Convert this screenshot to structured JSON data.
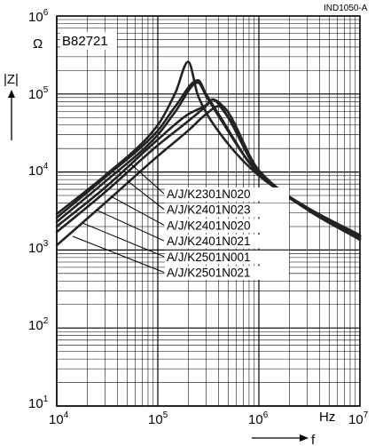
{
  "header": {
    "doc_id": "IND1050-A",
    "part_series": "B82721"
  },
  "axes": {
    "y_label": "|Z|",
    "y_unit": "Ω",
    "x_label": "f",
    "x_unit": "Hz",
    "x_tick_base": "10",
    "x_tick_exponents": [
      "4",
      "5",
      "6",
      "7"
    ],
    "y_tick_base": "10",
    "y_tick_exponents": [
      "1",
      "2",
      "3",
      "4",
      "5",
      "6"
    ]
  },
  "legend": {
    "labels": [
      "A/J/K2301N020",
      "A/J/K2401N023",
      "A/J/K2401N020",
      "A/J/K2401N021",
      "A/J/K2501N001",
      "A/J/K2501N021"
    ]
  },
  "colors": {
    "curve": "#222222",
    "grid": "#000000",
    "background": "#ffffff"
  },
  "chart_data": {
    "type": "line",
    "title": "B82721",
    "xlabel": "f",
    "ylabel": "|Z|",
    "x_unit": "Hz",
    "y_unit": "Ω",
    "x_scale": "log",
    "y_scale": "log",
    "xlim": [
      10000,
      10000000
    ],
    "ylim": [
      10,
      1000000
    ],
    "grid": true,
    "series": [
      {
        "name": "A/J/K2301N020",
        "x": [
          10000,
          30000,
          100000,
          150000,
          200000,
          250000,
          400000,
          1000000,
          3000000,
          10000000
        ],
        "y": [
          2900,
          9000,
          40000,
          105000,
          260000,
          95000,
          33000,
          9000,
          3500,
          1550
        ]
      },
      {
        "name": "A/J/K2401N023",
        "x": [
          10000,
          30000,
          100000,
          150000,
          250000,
          300000,
          400000,
          1000000,
          3000000,
          10000000
        ],
        "y": [
          2600,
          8500,
          34000,
          70000,
          150000,
          100000,
          55000,
          9500,
          3500,
          1500
        ]
      },
      {
        "name": "A/J/K2401N020",
        "x": [
          10000,
          30000,
          100000,
          150000,
          250000,
          300000,
          400000,
          1000000,
          3000000,
          10000000
        ],
        "y": [
          2300,
          7500,
          30000,
          60000,
          140000,
          95000,
          52000,
          9500,
          3400,
          1500
        ]
      },
      {
        "name": "A/J/K2401N021",
        "x": [
          10000,
          30000,
          100000,
          200000,
          300000,
          350000,
          450000,
          1000000,
          3000000,
          10000000
        ],
        "y": [
          2000,
          6300,
          26000,
          55000,
          72000,
          85000,
          60000,
          10000,
          3400,
          1450
        ]
      },
      {
        "name": "A/J/K2501N001",
        "x": [
          10000,
          30000,
          100000,
          200000,
          300000,
          350000,
          450000,
          1000000,
          3000000,
          10000000
        ],
        "y": [
          1700,
          5500,
          22000,
          45000,
          70000,
          85000,
          68000,
          10500,
          3400,
          1400
        ]
      },
      {
        "name": "A/J/K2501N021",
        "x": [
          10000,
          30000,
          100000,
          200000,
          300000,
          400000,
          500000,
          1000000,
          3000000,
          10000000
        ],
        "y": [
          1150,
          4000,
          16000,
          34000,
          55000,
          70000,
          50000,
          10000,
          3300,
          1350
        ]
      }
    ]
  }
}
